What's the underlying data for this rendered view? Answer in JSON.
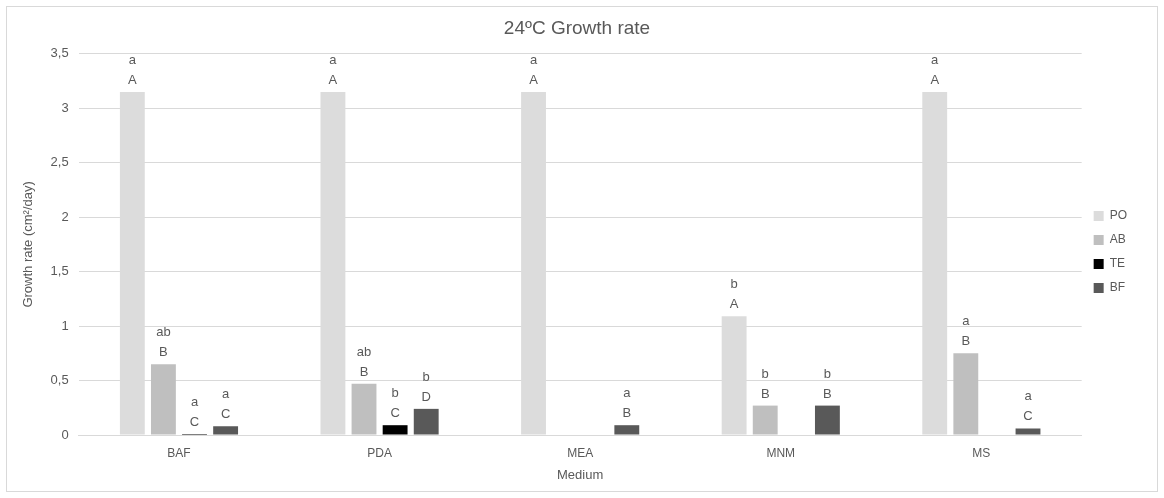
{
  "chart_data": {
    "type": "bar",
    "title": "24ºC Growth rate",
    "xlabel": "Medium",
    "ylabel": "Growth rate (cm²/day)",
    "categories": [
      "BAF",
      "PDA",
      "MEA",
      "MNM",
      "MS"
    ],
    "series": [
      {
        "name": "PO",
        "color": "#dcdcdc",
        "values": [
          3.15,
          3.15,
          3.15,
          1.09,
          3.15
        ],
        "value_labels": [
          "a\nA",
          "a\nA",
          "a\nA",
          "b\nA",
          "a\nA"
        ]
      },
      {
        "name": "AB",
        "color": "#bfbfbf",
        "values": [
          0.65,
          0.47,
          null,
          0.27,
          0.75
        ],
        "value_labels": [
          "ab\nB",
          "ab\nB",
          null,
          "b\nB",
          "a\nB"
        ]
      },
      {
        "name": "TE",
        "color": "#000000",
        "values": [
          0.01,
          0.09,
          null,
          null,
          null
        ],
        "value_labels": [
          "a\nC",
          "b\nC",
          null,
          null,
          null
        ]
      },
      {
        "name": "BF",
        "color": "#595959",
        "values": [
          0.08,
          0.24,
          0.09,
          0.27,
          0.06
        ],
        "value_labels": [
          "a\nC",
          "b\nD",
          "a\nB",
          "b\nB",
          "a\nC"
        ]
      }
    ],
    "ylim": [
      0,
      3.5
    ],
    "yticks": [
      {
        "value": 0,
        "label": "0"
      },
      {
        "value": 0.5,
        "label": "0,5"
      },
      {
        "value": 1,
        "label": "1"
      },
      {
        "value": 1.5,
        "label": "1,5"
      },
      {
        "value": 2,
        "label": "2"
      },
      {
        "value": 2.5,
        "label": "2,5"
      },
      {
        "value": 3,
        "label": "3"
      },
      {
        "value": 3.5,
        "label": "3,5"
      }
    ],
    "grid": "y",
    "legend": "right"
  }
}
